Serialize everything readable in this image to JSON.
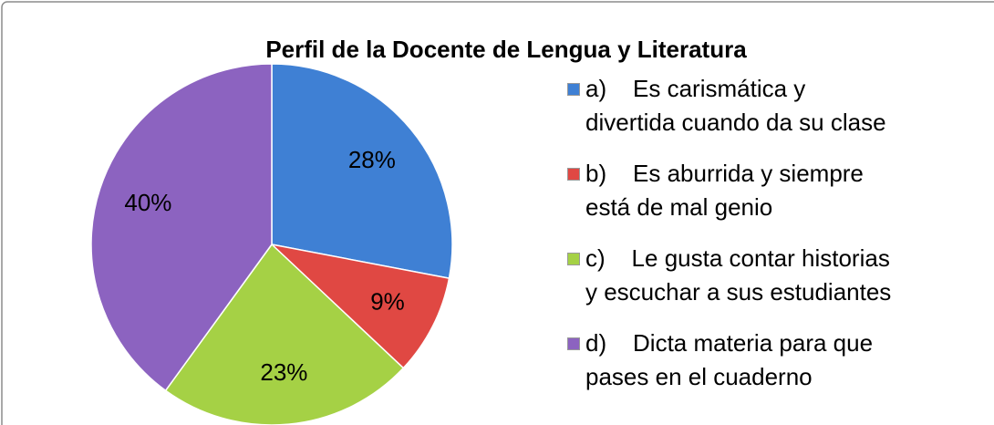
{
  "chart_data": {
    "type": "pie",
    "title": "Perfil de la Docente de Lengua y Literatura",
    "categories": [
      "a)    Es carismática y\ndivertida cuando da su clase",
      "b)    Es aburrida y siempre\nestá de mal genio",
      "c)    Le gusta contar historias\ny escuchar a sus estudiantes",
      "d)    Dicta materia para que\npases en el cuaderno"
    ],
    "values": [
      28,
      9,
      23,
      40
    ],
    "value_labels": [
      "28%",
      "9%",
      "23%",
      "40%"
    ],
    "colors": [
      "#3f80d4",
      "#e04843",
      "#a5d145",
      "#8c63c0"
    ],
    "legend": "right"
  }
}
